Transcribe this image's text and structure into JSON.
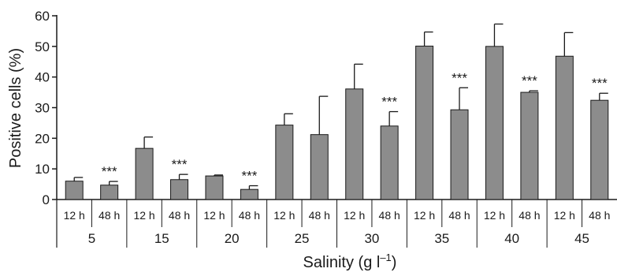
{
  "chart_data": {
    "type": "bar",
    "title": "",
    "xlabel": "Salinity (g l",
    "xlabel_superscript": "–1",
    "xlabel_close": ")",
    "ylabel": "Positive cells (%)",
    "ylim": [
      0,
      60
    ],
    "yticks": [
      "0",
      "10",
      "20",
      "30",
      "40",
      "50",
      "60"
    ],
    "groups": [
      "5",
      "15",
      "20",
      "25",
      "30",
      "35",
      "40",
      "45"
    ],
    "subcategories": [
      "12 h",
      "48 h"
    ],
    "bar_color": "#8c8c8c",
    "significance_label": "***",
    "bars": [
      {
        "group": "5",
        "time": "12 h",
        "value": 6.0,
        "error": 1.2,
        "sig": ""
      },
      {
        "group": "5",
        "time": "48 h",
        "value": 4.7,
        "error": 1.2,
        "sig": "***"
      },
      {
        "group": "15",
        "time": "12 h",
        "value": 16.7,
        "error": 3.7,
        "sig": ""
      },
      {
        "group": "15",
        "time": "48 h",
        "value": 6.5,
        "error": 1.7,
        "sig": "***"
      },
      {
        "group": "20",
        "time": "12 h",
        "value": 7.7,
        "error": 0.3,
        "sig": ""
      },
      {
        "group": "20",
        "time": "48 h",
        "value": 3.3,
        "error": 1.2,
        "sig": "***"
      },
      {
        "group": "25",
        "time": "12 h",
        "value": 24.3,
        "error": 3.7,
        "sig": ""
      },
      {
        "group": "25",
        "time": "48 h",
        "value": 21.2,
        "error": 12.5,
        "sig": ""
      },
      {
        "group": "30",
        "time": "12 h",
        "value": 36.1,
        "error": 8.1,
        "sig": ""
      },
      {
        "group": "30",
        "time": "48 h",
        "value": 24.0,
        "error": 4.7,
        "sig": "***"
      },
      {
        "group": "35",
        "time": "12 h",
        "value": 50.1,
        "error": 4.6,
        "sig": ""
      },
      {
        "group": "35",
        "time": "48 h",
        "value": 29.3,
        "error": 7.2,
        "sig": "***"
      },
      {
        "group": "40",
        "time": "12 h",
        "value": 50.0,
        "error": 7.3,
        "sig": ""
      },
      {
        "group": "40",
        "time": "48 h",
        "value": 35.0,
        "error": 0.5,
        "sig": "***"
      },
      {
        "group": "45",
        "time": "12 h",
        "value": 46.8,
        "error": 7.7,
        "sig": ""
      },
      {
        "group": "45",
        "time": "48 h",
        "value": 32.4,
        "error": 2.3,
        "sig": "***"
      }
    ]
  }
}
